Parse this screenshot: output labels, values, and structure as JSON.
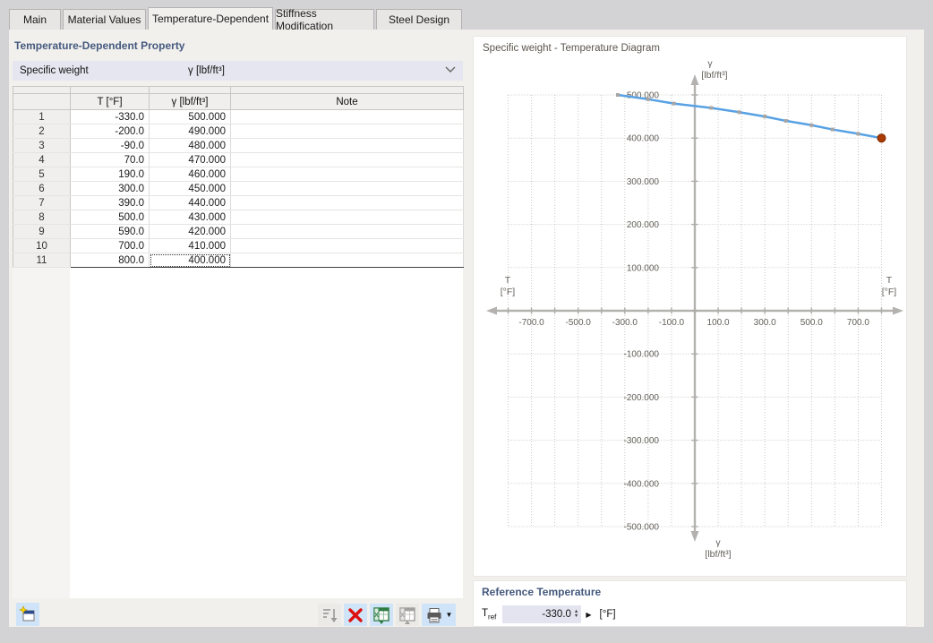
{
  "tabs": [
    {
      "label": "Main",
      "active": false
    },
    {
      "label": "Material Values",
      "active": false
    },
    {
      "label": "Temperature-Dependent",
      "active": true
    },
    {
      "label": "Stiffness Modification",
      "active": false
    },
    {
      "label": "Steel Design",
      "active": false
    }
  ],
  "left_panel": {
    "section_title": "Temperature-Dependent Property",
    "property_selector": {
      "name": "Specific weight",
      "unit": "γ [lbf/ft³]"
    },
    "table": {
      "headers": [
        "",
        "T [°F]",
        "γ [lbf/ft³]",
        "Note"
      ],
      "rows": [
        {
          "n": "1",
          "t": "-330.0",
          "g": "500.000",
          "note": ""
        },
        {
          "n": "2",
          "t": "-200.0",
          "g": "490.000",
          "note": ""
        },
        {
          "n": "3",
          "t": "-90.0",
          "g": "480.000",
          "note": ""
        },
        {
          "n": "4",
          "t": "70.0",
          "g": "470.000",
          "note": ""
        },
        {
          "n": "5",
          "t": "190.0",
          "g": "460.000",
          "note": ""
        },
        {
          "n": "6",
          "t": "300.0",
          "g": "450.000",
          "note": ""
        },
        {
          "n": "7",
          "t": "390.0",
          "g": "440.000",
          "note": ""
        },
        {
          "n": "8",
          "t": "500.0",
          "g": "430.000",
          "note": ""
        },
        {
          "n": "9",
          "t": "590.0",
          "g": "420.000",
          "note": ""
        },
        {
          "n": "10",
          "t": "700.0",
          "g": "410.000",
          "note": ""
        },
        {
          "n": "11",
          "t": "800.0",
          "g": "400.000",
          "note": ""
        }
      ],
      "selected_cell": {
        "row_index": 10,
        "column": "g"
      }
    }
  },
  "toolbar": {
    "buttons": [
      {
        "name": "sort-rows",
        "icon": "sort-descending-icon",
        "enabled": false
      },
      {
        "name": "delete-row",
        "icon": "red-x-icon",
        "enabled": true
      },
      {
        "name": "export-excel",
        "icon": "excel-export-icon",
        "enabled": true
      },
      {
        "name": "import-excel",
        "icon": "excel-import-icon",
        "enabled": false
      },
      {
        "name": "print",
        "icon": "printer-icon",
        "enabled": true,
        "has_dropdown": true
      }
    ],
    "new_button": {
      "name": "new-property",
      "icon": "new-window-star-icon"
    }
  },
  "right_panel": {
    "diagram_title": "Specific weight - Temperature Diagram",
    "reference": {
      "section_title": "Reference Temperature",
      "label_main": "T",
      "label_sub": "ref",
      "value": "-330.0",
      "unit": "[°F]"
    }
  },
  "chart_data": {
    "type": "line",
    "title": "Specific weight - Temperature Diagram",
    "x": [
      -330,
      -200,
      -90,
      70,
      190,
      300,
      390,
      500,
      590,
      700,
      800
    ],
    "y": [
      500,
      490,
      480,
      470,
      460,
      450,
      440,
      430,
      420,
      410,
      400
    ],
    "xlabel_line1": "T",
    "xlabel_line2": "[°F]",
    "ylabel_line1": "γ",
    "ylabel_line2": "[lbf/ft³]",
    "xlim": [
      -800,
      800
    ],
    "ylim": [
      -500,
      500
    ],
    "grid_step_x": 100,
    "grid_step_y": 100,
    "x_ticks": [
      "-700.0",
      "-500.0",
      "-300.0",
      "-100.0",
      "100.0",
      "300.0",
      "500.0",
      "700.0"
    ],
    "y_ticks": [
      "500.000",
      "400.000",
      "300.000",
      "200.000",
      "100.000",
      "-100.000",
      "-200.000",
      "-300.000",
      "-400.000",
      "-500.000"
    ],
    "grid": "dotted",
    "line_color": "#57a1e4",
    "marker_color": "#a8a6a4",
    "highlight_point": {
      "x": 800,
      "y": 400,
      "color": "#ad3a00"
    }
  }
}
